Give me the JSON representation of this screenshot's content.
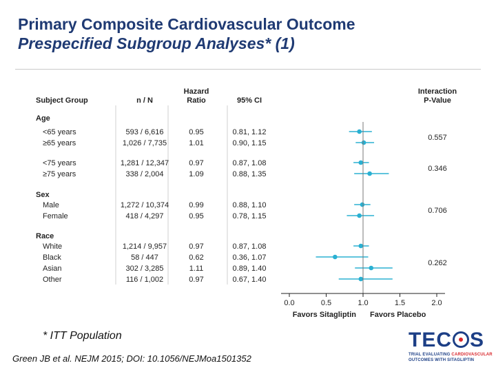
{
  "slide": {
    "title": "Primary Composite Cardiovascular Outcome",
    "subtitle": "Prespecified Subgroup Analyses* (1)",
    "footnote": "* ITT Population",
    "citation": "Green JB et al. NEJM 2015; DOI: 10.1056/NEJMoa1501352"
  },
  "logo": {
    "name_pre": "TEC",
    "name_post": "S",
    "line1_pre": "TRIAL EVALUATING ",
    "line1_highlight": "CARDIOVASCULAR",
    "line2": "OUTCOMES WITH SITAGLIPTIN"
  },
  "colors": {
    "title": "#1f3a73",
    "marker": "#2ab0d2",
    "axis": "#222222",
    "reference": "#777777"
  },
  "chart_data": {
    "type": "forest",
    "headers": {
      "group": "Subject Group",
      "n": "n / N",
      "hr_line1": "Hazard",
      "hr_line2": "Ratio",
      "ci": "95% CI",
      "p_line1": "Interaction",
      "p_line2": "P-Value"
    },
    "x_ticks": [
      0.0,
      0.5,
      1.0,
      1.5,
      2.0
    ],
    "x_tick_labels": [
      "0.0",
      "0.5",
      "1.0",
      "1.5",
      "2.0"
    ],
    "xlim": [
      0.0,
      2.0
    ],
    "reference_line": 1.0,
    "favors_left": "Favors Sitagliptin",
    "favors_right": "Favors Placebo",
    "categories": [
      {
        "name": "Age",
        "rows": [
          {
            "label": "<65 years",
            "n": "593 / 6,616",
            "hr": 0.95,
            "hr_label": "0.95",
            "ci": [
              0.81,
              1.12
            ],
            "ci_label": "0.81, 1.12"
          },
          {
            "label": "≥65 years",
            "n": "1,026 / 7,735",
            "hr": 1.01,
            "hr_label": "1.01",
            "ci": [
              0.9,
              1.15
            ],
            "ci_label": "0.90, 1.15"
          }
        ],
        "p_value": "0.557"
      },
      {
        "name": "",
        "rows": [
          {
            "label": "<75 years",
            "n": "1,281 / 12,347",
            "hr": 0.97,
            "hr_label": "0.97",
            "ci": [
              0.87,
              1.08
            ],
            "ci_label": "0.87, 1.08"
          },
          {
            "label": "≥75 years",
            "n": "338 / 2,004",
            "hr": 1.09,
            "hr_label": "1.09",
            "ci": [
              0.88,
              1.35
            ],
            "ci_label": "0.88, 1.35"
          }
        ],
        "p_value": "0.346"
      },
      {
        "name": "Sex",
        "rows": [
          {
            "label": "Male",
            "n": "1,272 / 10,374",
            "hr": 0.99,
            "hr_label": "0.99",
            "ci": [
              0.88,
              1.1
            ],
            "ci_label": "0.88, 1.10"
          },
          {
            "label": "Female",
            "n": "418 / 4,297",
            "hr": 0.95,
            "hr_label": "0.95",
            "ci": [
              0.78,
              1.15
            ],
            "ci_label": "0.78, 1.15"
          }
        ],
        "p_value": "0.706"
      },
      {
        "name": "Race",
        "rows": [
          {
            "label": "White",
            "n": "1,214 / 9,957",
            "hr": 0.97,
            "hr_label": "0.97",
            "ci": [
              0.87,
              1.08
            ],
            "ci_label": "0.87, 1.08"
          },
          {
            "label": "Black",
            "n": "58 / 447",
            "hr": 0.62,
            "hr_label": "0.62",
            "ci": [
              0.36,
              1.07
            ],
            "ci_label": "0.36, 1.07"
          },
          {
            "label": "Asian",
            "n": "302 / 3,285",
            "hr": 1.11,
            "hr_label": "1.11",
            "ci": [
              0.89,
              1.4
            ],
            "ci_label": "0.89, 1.40"
          },
          {
            "label": "Other",
            "n": "116 / 1,002",
            "hr": 0.97,
            "hr_label": "0.97",
            "ci": [
              0.67,
              1.4
            ],
            "ci_label": "0.67, 1.40"
          }
        ],
        "p_value": "0.262"
      }
    ]
  }
}
